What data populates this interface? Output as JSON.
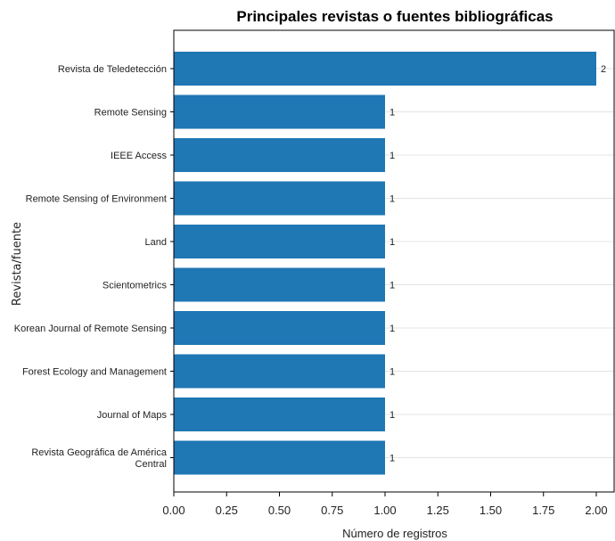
{
  "chart_data": {
    "type": "bar",
    "orientation": "horizontal",
    "title": "Principales revistas o fuentes bibliográficas",
    "xlabel": "Número de registros",
    "ylabel": "Revista/fuente",
    "categories": [
      "Revista de Teledetección",
      "Remote Sensing",
      "IEEE Access",
      "Remote Sensing of Environment",
      "Land",
      "Scientometrics",
      "Korean Journal of Remote Sensing",
      "Forest Ecology and Management",
      "Journal of Maps",
      "Revista Geográfica de América Central"
    ],
    "category_lines": [
      [
        "Revista de Teledetección"
      ],
      [
        "Remote Sensing"
      ],
      [
        "IEEE Access"
      ],
      [
        "Remote Sensing of Environment"
      ],
      [
        "Land"
      ],
      [
        "Scientometrics"
      ],
      [
        "Korean Journal of Remote Sensing"
      ],
      [
        "Forest Ecology and Management"
      ],
      [
        "Journal of Maps"
      ],
      [
        "Revista Geográfica de América",
        "Central"
      ]
    ],
    "values": [
      2,
      1,
      1,
      1,
      1,
      1,
      1,
      1,
      1,
      1
    ],
    "data_labels": [
      "2",
      "1",
      "1",
      "1",
      "1",
      "1",
      "1",
      "1",
      "1",
      "1"
    ],
    "xlim": [
      0,
      2.08
    ],
    "xticks": [
      "0.00",
      "0.25",
      "0.50",
      "0.75",
      "1.00",
      "1.25",
      "1.50",
      "1.75",
      "2.00"
    ],
    "bar_color": "#1f77b4",
    "grid": "horizontal, light gray"
  }
}
